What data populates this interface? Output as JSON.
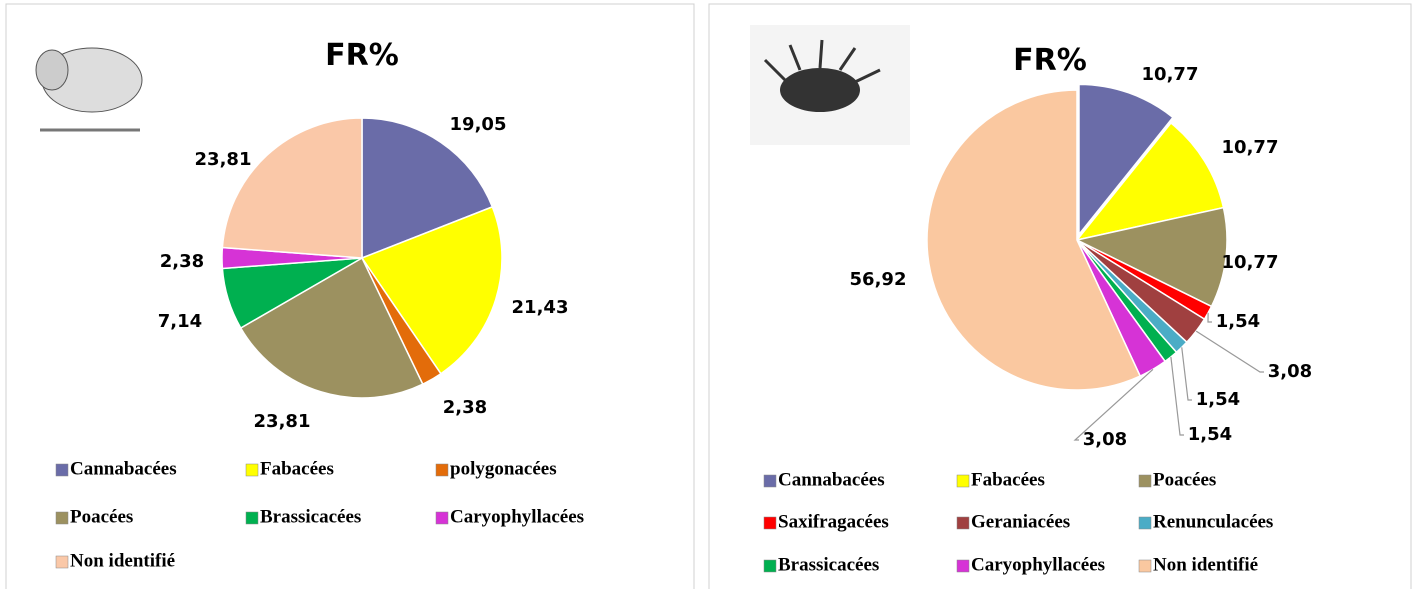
{
  "chart_data": [
    {
      "type": "pie",
      "title": "FR%",
      "categories": [
        "Cannabacées",
        "Fabacées",
        "polygonacées",
        "Poacées",
        "Brassicacées",
        "Caryophyllacées",
        "Non identifié"
      ],
      "values": [
        19.05,
        21.43,
        2.38,
        23.81,
        7.14,
        2.38,
        23.81
      ],
      "value_labels": [
        "19,05",
        "21,43",
        "2,38",
        "23,81",
        "7,14",
        "2,38",
        "23,81"
      ],
      "colors": [
        "#6a6ca8",
        "#ffff00",
        "#e36c0a",
        "#9c9160",
        "#00b050",
        "#d633d6",
        "#fac8a8"
      ]
    },
    {
      "type": "pie",
      "title": "FR%",
      "categories": [
        "Cannabacées",
        "Fabacées",
        "Poacées",
        "Saxifragacées",
        "Geraniacées",
        "Renunculacées",
        "Brassicacées",
        "Caryophyllacées",
        "Non identifié"
      ],
      "values": [
        10.77,
        10.77,
        10.77,
        1.54,
        3.08,
        1.54,
        1.54,
        3.08,
        56.92
      ],
      "value_labels": [
        "10,77",
        "10,77",
        "10,77",
        "1,54",
        "3,08",
        "1,54",
        "1,54",
        "3,08",
        "56,92"
      ],
      "colors": [
        "#6a6ca8",
        "#ffff00",
        "#9c9160",
        "#ff0000",
        "#a04040",
        "#4bacc6",
        "#00b050",
        "#d633d6",
        "#fac8a0"
      ]
    }
  ]
}
